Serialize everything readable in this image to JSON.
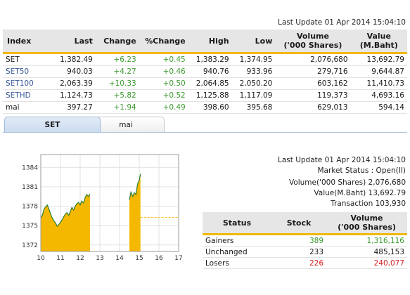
{
  "top_update": "Last Update 01 Apr 2014 15:04:10",
  "index_table": {
    "headers": {
      "index": "Index",
      "last": "Last",
      "change": "Change",
      "pct_change": "%Change",
      "high": "High",
      "low": "Low",
      "volume": "Volume",
      "volume_unit": "('000 Shares)",
      "value": "Value",
      "value_unit": "(M.Baht)"
    },
    "rows": [
      {
        "index": "SET",
        "last": "1,382.49",
        "change": "+6.23",
        "pct_change": "+0.45",
        "high": "1,383.29",
        "low": "1,374.95",
        "volume": "2,076,680",
        "value": "13,692.79"
      },
      {
        "index": "SET50",
        "last": "940.03",
        "change": "+4.27",
        "pct_change": "+0.46",
        "high": "940.76",
        "low": "933.96",
        "volume": "279,716",
        "value": "9,644.87"
      },
      {
        "index": "SET100",
        "last": "2,063.39",
        "change": "+10.33",
        "pct_change": "+0.50",
        "high": "2,064.85",
        "low": "2,050.20",
        "volume": "603,162",
        "value": "11,410.73"
      },
      {
        "index": "SETHD",
        "last": "1,124.73",
        "change": "+5.82",
        "pct_change": "+0.52",
        "high": "1,125.88",
        "low": "1,117.09",
        "volume": "119,373",
        "value": "4,693.16"
      },
      {
        "index": "mai",
        "last": "397.27",
        "change": "+1.94",
        "pct_change": "+0.49",
        "high": "398.60",
        "low": "395.68",
        "volume": "629,013",
        "value": "594.14"
      }
    ]
  },
  "tabs": [
    "SET",
    "mai"
  ],
  "market_info": {
    "update": "Last Update 01 Apr 2014 15:04:10",
    "status": "Market Status : Open(II)",
    "volume": "Volume('000 Shares) 2,076,680",
    "value": "Value(M.Baht) 13,692.79",
    "transaction": "Transaction 103,930"
  },
  "breadth_table": {
    "headers": {
      "status": "Status",
      "stock": "Stock",
      "volume": "Volume",
      "volume_unit": "('000 Shares)"
    },
    "rows": [
      {
        "status": "Gainers",
        "stock": "389",
        "volume": "1,316,116",
        "tone": "pos"
      },
      {
        "status": "Unchanged",
        "stock": "233",
        "volume": "485,153",
        "tone": "neutral"
      },
      {
        "status": "Losers",
        "stock": "226",
        "volume": "240,077",
        "tone": "neg"
      }
    ]
  },
  "colors": {
    "gain": "#3c9a2f",
    "loss": "#d42020",
    "accent": "#f2b705",
    "area": "#f5b800",
    "prev_close_line": "#f5b800"
  },
  "chart_data": {
    "type": "area",
    "title": "",
    "xlabel": "",
    "ylabel": "",
    "x_ticks": [
      10,
      11,
      12,
      13,
      14,
      15,
      16,
      17
    ],
    "y_ticks": [
      1372,
      1375,
      1378,
      1381,
      1384
    ],
    "xlim": [
      10,
      17
    ],
    "ylim": [
      1371,
      1386
    ],
    "prev_close": 1376.26,
    "grid": true,
    "series": [
      {
        "session": "morning",
        "points": [
          [
            10.0,
            1376.2
          ],
          [
            10.08,
            1376.6
          ],
          [
            10.17,
            1377.6
          ],
          [
            10.25,
            1377.9
          ],
          [
            10.33,
            1378.2
          ],
          [
            10.42,
            1377.5
          ],
          [
            10.5,
            1376.8
          ],
          [
            10.58,
            1376.2
          ],
          [
            10.67,
            1375.7
          ],
          [
            10.75,
            1375.4
          ],
          [
            10.83,
            1374.9
          ],
          [
            10.92,
            1375.2
          ],
          [
            11.0,
            1375.5
          ],
          [
            11.08,
            1375.9
          ],
          [
            11.17,
            1376.4
          ],
          [
            11.25,
            1376.8
          ],
          [
            11.33,
            1377.0
          ],
          [
            11.42,
            1376.6
          ],
          [
            11.5,
            1377.2
          ],
          [
            11.58,
            1377.8
          ],
          [
            11.67,
            1377.4
          ],
          [
            11.75,
            1378.0
          ],
          [
            11.83,
            1378.4
          ],
          [
            11.92,
            1378.6
          ],
          [
            12.0,
            1378.2
          ],
          [
            12.08,
            1378.8
          ],
          [
            12.17,
            1378.5
          ],
          [
            12.25,
            1379.3
          ],
          [
            12.33,
            1379.8
          ],
          [
            12.42,
            1379.5
          ],
          [
            12.5,
            1379.9
          ]
        ]
      },
      {
        "session": "afternoon",
        "points": [
          [
            14.5,
            1379.0
          ],
          [
            14.58,
            1380.2
          ],
          [
            14.67,
            1379.5
          ],
          [
            14.75,
            1380.1
          ],
          [
            14.83,
            1379.8
          ],
          [
            14.92,
            1381.5
          ],
          [
            15.0,
            1382.0
          ],
          [
            15.06,
            1383.0
          ]
        ]
      }
    ]
  }
}
